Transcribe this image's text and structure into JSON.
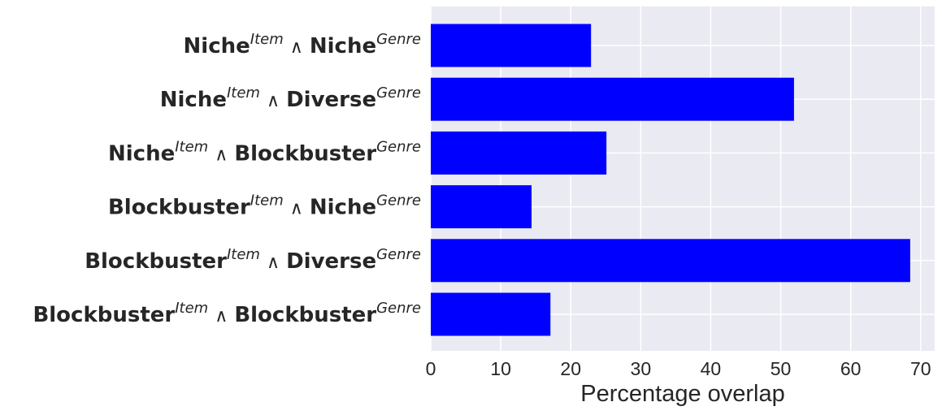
{
  "chart_data": {
    "type": "barh",
    "categories": [
      {
        "item": "Niche",
        "item_sup": "Item",
        "operator": "∧",
        "genre": "Niche",
        "genre_sup": "Genre"
      },
      {
        "item": "Niche",
        "item_sup": "Item",
        "operator": "∧",
        "genre": "Diverse",
        "genre_sup": "Genre"
      },
      {
        "item": "Niche",
        "item_sup": "Item",
        "operator": "∧",
        "genre": "Blockbuster",
        "genre_sup": "Genre"
      },
      {
        "item": "Blockbuster",
        "item_sup": "Item",
        "operator": "∧",
        "genre": "Niche",
        "genre_sup": "Genre"
      },
      {
        "item": "Blockbuster",
        "item_sup": "Item",
        "operator": "∧",
        "genre": "Diverse",
        "genre_sup": "Genre"
      },
      {
        "item": "Blockbuster",
        "item_sup": "Item",
        "operator": "∧",
        "genre": "Blockbuster",
        "genre_sup": "Genre"
      }
    ],
    "values": [
      22.9,
      51.9,
      25.1,
      14.4,
      68.5,
      17.1
    ],
    "color": "#0000ff",
    "xlim": [
      0,
      72
    ],
    "xticks": [
      0,
      10,
      20,
      30,
      40,
      50,
      60,
      70
    ],
    "xlabel": "Percentage overlap",
    "grid": true
  }
}
